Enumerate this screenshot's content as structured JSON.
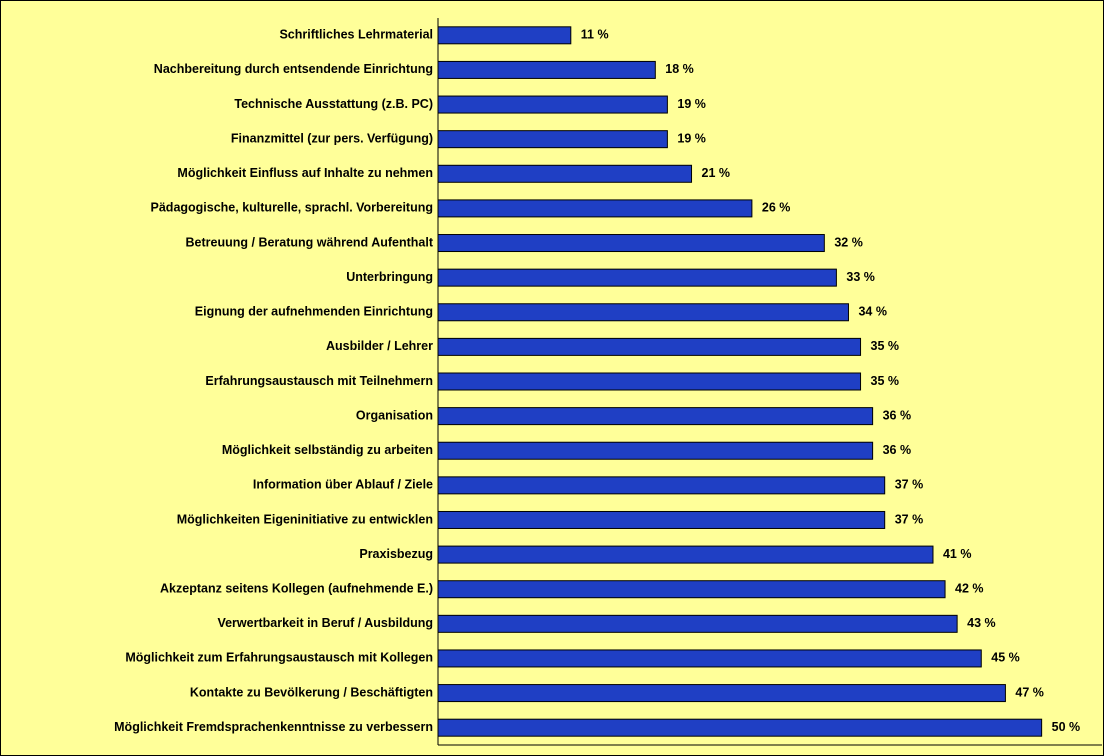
{
  "chart_data": {
    "type": "barh",
    "categories": [
      "Schriftliches Lehrmaterial",
      "Nachbereitung durch entsendende Einrichtung",
      "Technische Ausstattung (z.B. PC)",
      "Finanzmittel (zur pers. Verfügung)",
      "Möglichkeit Einfluss auf Inhalte zu nehmen",
      "Pädagogische, kulturelle, sprachl. Vorbereitung",
      "Betreuung / Beratung während Aufenthalt",
      "Unterbringung",
      "Eignung der aufnehmenden Einrichtung",
      "Ausbilder / Lehrer",
      "Erfahrungsaustausch mit Teilnehmern",
      "Organisation",
      "Möglichkeit selbständig zu arbeiten",
      "Information über Ablauf / Ziele",
      "Möglichkeiten Eigeninitiative zu entwicklen",
      "Praxisbezug",
      "Akzeptanz seitens Kollegen (aufnehmende E.)",
      "Verwertbarkeit in Beruf / Ausbildung",
      "Möglichkeit zum Erfahrungsaustausch mit Kollegen",
      "Kontakte zu Bevölkerung / Beschäftigten",
      "Möglichkeit Fremdsprachenkenntnisse zu verbessern"
    ],
    "values": [
      11,
      18,
      19,
      19,
      21,
      26,
      32,
      33,
      34,
      35,
      35,
      36,
      36,
      37,
      37,
      41,
      42,
      43,
      45,
      47,
      50
    ],
    "value_labels": [
      "11 %",
      "18 %",
      "19 %",
      "19 %",
      "21 %",
      "26 %",
      "32 %",
      "33 %",
      "34 %",
      "35 %",
      "35 %",
      "36 %",
      "36 %",
      "37 %",
      "37 %",
      "41 %",
      "42 %",
      "43 %",
      "45 %",
      "47 %",
      "50 %"
    ],
    "color": "#1f3fc4",
    "xlim": [
      0,
      55
    ]
  }
}
